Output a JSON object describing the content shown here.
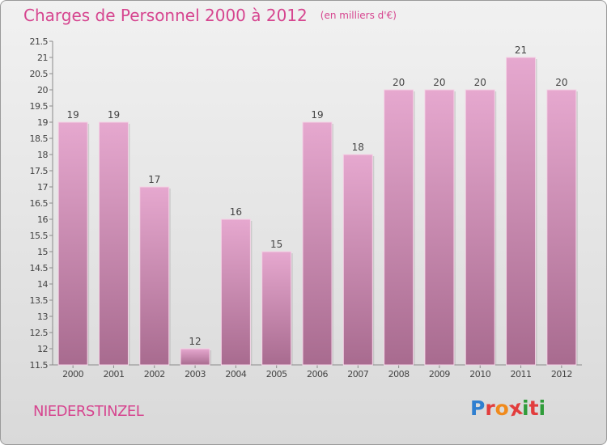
{
  "chart_data": {
    "type": "bar",
    "title": "Charges de Personnel 2000 à 2012",
    "subtitle": "(en milliers d'€)",
    "categories": [
      "2000",
      "2001",
      "2002",
      "2003",
      "2004",
      "2005",
      "2006",
      "2007",
      "2008",
      "2009",
      "2010",
      "2011",
      "2012"
    ],
    "values": [
      19,
      19,
      17,
      12,
      16,
      15,
      19,
      18,
      20,
      20,
      20,
      21,
      20
    ],
    "ylim": [
      11.5,
      21.5
    ],
    "yticks": [
      "11.5",
      "12",
      "12.5",
      "13",
      "13.5",
      "14",
      "14.5",
      "15",
      "15.5",
      "16",
      "16.5",
      "17",
      "17.5",
      "18",
      "18.5",
      "19",
      "19.5",
      "20",
      "20.5",
      "21",
      "21.5"
    ],
    "grid": false,
    "legend": "none"
  },
  "footer": {
    "commune": "NIEDERSTINZEL",
    "logo_letters": [
      "P",
      "r",
      "o",
      "x",
      "i",
      "t",
      "i"
    ]
  },
  "colors": {
    "accent": "#d6458f",
    "bar_top": "#e6a8cf",
    "bar_bottom": "#a86b8f",
    "logo": [
      "#2f7fd0",
      "#e23d3d",
      "#f08a1c",
      "#e23d3d",
      "#2f9c3a",
      "#e23d3d",
      "#2f9c3a"
    ]
  }
}
